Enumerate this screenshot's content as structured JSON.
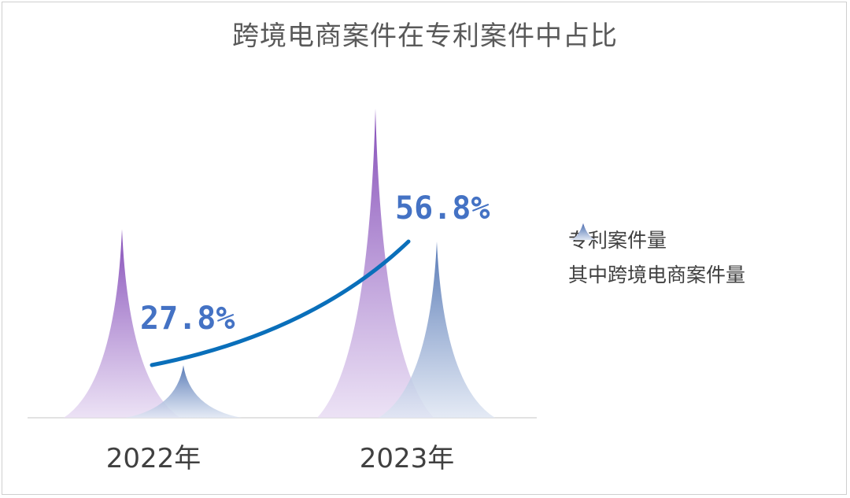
{
  "chart_data": {
    "type": "bar",
    "title": "跨境电商案件在专利案件中占比",
    "categories": [
      "2022年",
      "2023年"
    ],
    "series": [
      {
        "name": "专利案件量",
        "color": "#7b3fb3",
        "relative_heights": [
          0.61,
          1.0
        ]
      },
      {
        "name": "其中跨境电商案件量",
        "color": "#4a6fb0",
        "relative_heights": [
          0.17,
          0.57
        ]
      }
    ],
    "ratio_line": {
      "color": "#0a6fba",
      "labels": [
        "27.8%",
        "56.8%"
      ],
      "values": [
        27.8,
        56.8
      ]
    },
    "legend_position": "right",
    "grid": false
  }
}
